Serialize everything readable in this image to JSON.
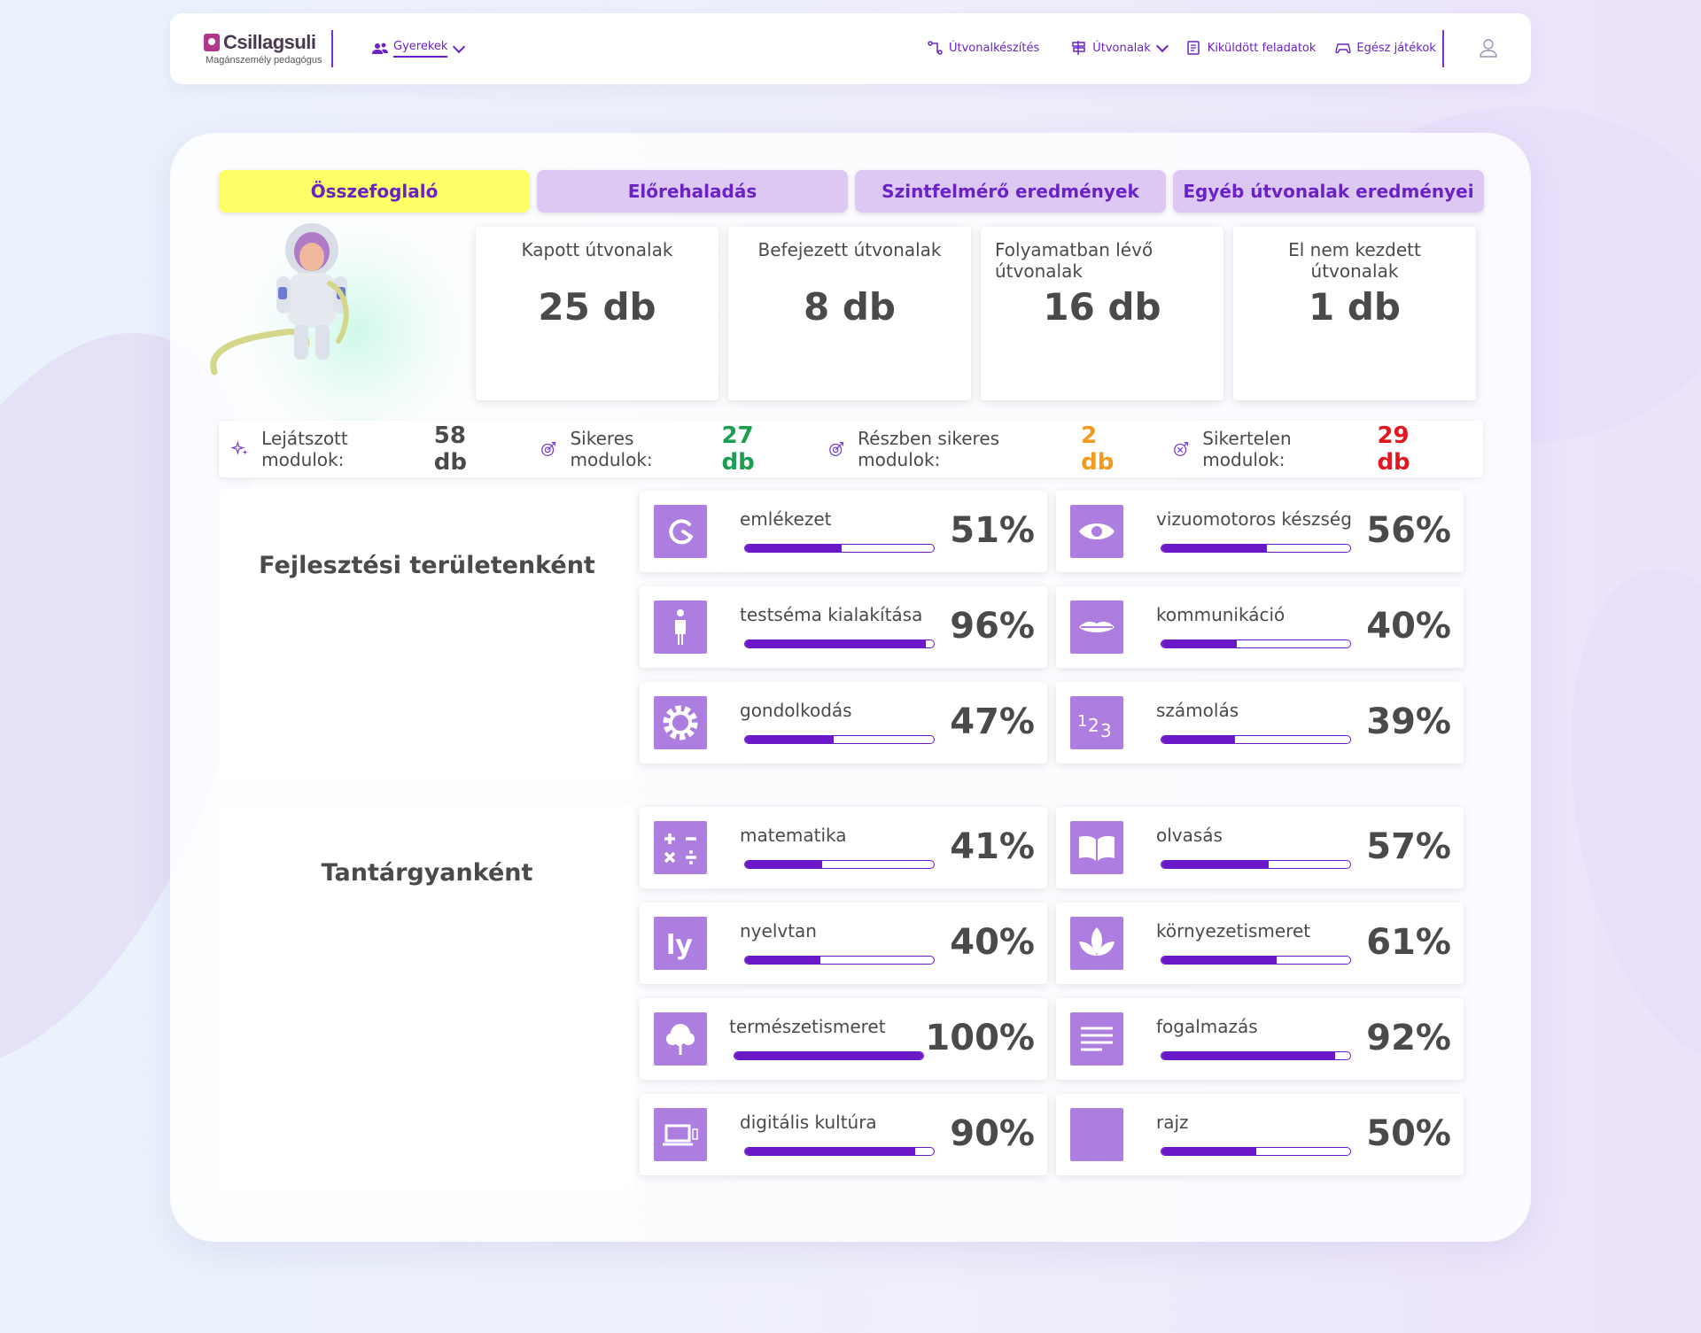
{
  "header": {
    "brand": "Csillagsuli",
    "brand_sub": "Magánszemély pedagógus",
    "kids_label": "Gyerekek",
    "nav": [
      {
        "label": "Útvonalkészítés",
        "icon": "route-build-icon"
      },
      {
        "label": "Útvonalak",
        "icon": "signpost-icon",
        "dropdown": true
      },
      {
        "label": "Kiküldött feladatok",
        "icon": "sent-tasks-icon"
      },
      {
        "label": "Egész játékok",
        "icon": "gamepad-icon"
      }
    ]
  },
  "tabs": [
    {
      "label": "Összefoglaló",
      "active": true
    },
    {
      "label": "Előrehaladás",
      "active": false
    },
    {
      "label": "Szintfelmérő eredmények",
      "active": false
    },
    {
      "label": "Egyéb útvonalak eredményei",
      "active": false
    }
  ],
  "stats": [
    {
      "label": "Kapott útvonalak",
      "value": "25 db"
    },
    {
      "label": "Befejezett útvonalak",
      "value": "8 db"
    },
    {
      "label": "Folyamatban lévő útvonalak",
      "value": "16 db"
    },
    {
      "label": "El nem kezdett útvonalak",
      "value": "1 db"
    }
  ],
  "modules": [
    {
      "label": "Lejátszott modulok:",
      "value": "58 db",
      "color": "#4a4a4a",
      "icon": "sparkle-icon"
    },
    {
      "label": "Sikeres modulok:",
      "value": "27 db",
      "color": "#1a9e4f",
      "icon": "target-icon"
    },
    {
      "label": "Részben sikeres modulok:",
      "value": "2 db",
      "color": "#f29a1f",
      "icon": "target-icon"
    },
    {
      "label": "Sikertelen modulok:",
      "value": "29 db",
      "color": "#e4161f",
      "icon": "target-miss-icon"
    }
  ],
  "development": {
    "title": "Fejlesztési területenként",
    "items": [
      {
        "name": "emlékezet",
        "percent": "51%",
        "value": 51,
        "icon": "memory-icon"
      },
      {
        "name": "vizuomotoros készség",
        "percent": "56%",
        "value": 56,
        "icon": "eye-icon"
      },
      {
        "name": "testséma kialakítása",
        "percent": "96%",
        "value": 96,
        "icon": "body-icon"
      },
      {
        "name": "kommunikáció",
        "percent": "40%",
        "value": 40,
        "icon": "lips-icon"
      },
      {
        "name": "gondolkodás",
        "percent": "47%",
        "value": 47,
        "icon": "gear-icon"
      },
      {
        "name": "számolás",
        "percent": "39%",
        "value": 39,
        "icon": "numbers-icon"
      }
    ]
  },
  "subjects": {
    "title": "Tantárgyanként",
    "items": [
      {
        "name": "matematika",
        "percent": "41%",
        "value": 41,
        "icon": "math-icon"
      },
      {
        "name": "olvasás",
        "percent": "57%",
        "value": 57,
        "icon": "book-icon"
      },
      {
        "name": "nyelvtan",
        "percent": "40%",
        "value": 40,
        "icon": "grammar-icon"
      },
      {
        "name": "környezetismeret",
        "percent": "61%",
        "value": 61,
        "icon": "leaf-icon"
      },
      {
        "name": "természetismeret",
        "percent": "100%",
        "value": 100,
        "icon": "tree-icon"
      },
      {
        "name": "fogalmazás",
        "percent": "92%",
        "value": 92,
        "icon": "text-lines-icon"
      },
      {
        "name": "digitális kultúra",
        "percent": "90%",
        "value": 90,
        "icon": "laptop-icon"
      },
      {
        "name": "rajz",
        "percent": "50%",
        "value": 50,
        "icon": "drawing-icon"
      }
    ]
  }
}
